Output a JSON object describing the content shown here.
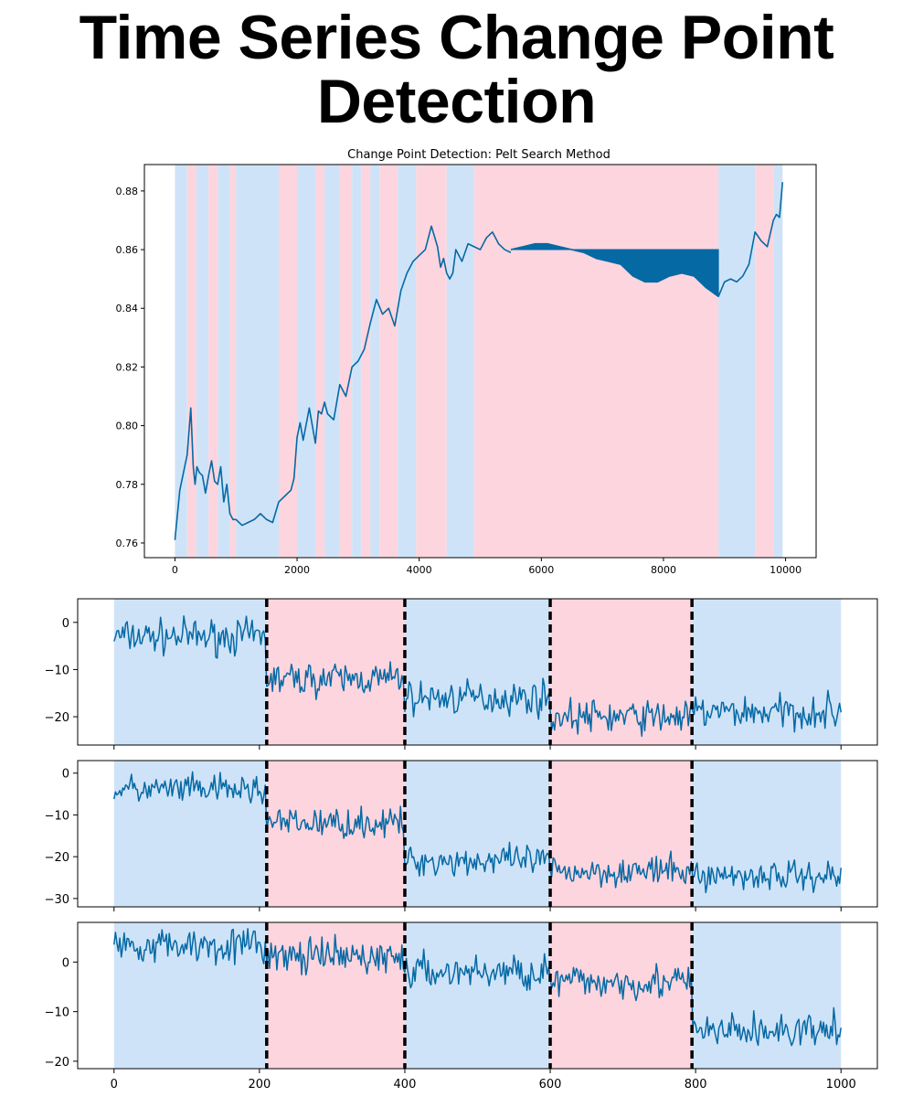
{
  "page": {
    "title": "Time Series Change Point Detection"
  },
  "colors": {
    "band_a": "#cfe3f8",
    "band_b": "#fdd5de",
    "line": "#0569a4",
    "axis": "#000000"
  },
  "chart_data": [
    {
      "type": "line",
      "title": "Change Point Detection: Pelt Search Method",
      "xlabel": "",
      "ylabel": "",
      "xlim": [
        -500,
        10500
      ],
      "ylim": [
        0.755,
        0.889
      ],
      "xticks": [
        0,
        2000,
        4000,
        6000,
        8000,
        10000
      ],
      "yticks": [
        0.76,
        0.78,
        0.8,
        0.82,
        0.84,
        0.86,
        0.88
      ],
      "ytick_labels": [
        "0.76",
        "0.78",
        "0.80",
        "0.82",
        "0.84",
        "0.86",
        "0.88"
      ],
      "grid": false,
      "segment_colors": [
        "band_a",
        "band_b"
      ],
      "breakpoints": [
        0,
        200,
        350,
        550,
        700,
        900,
        1000,
        1700,
        2000,
        2300,
        2450,
        2700,
        2900,
        3050,
        3200,
        3350,
        3650,
        3950,
        4450,
        4900,
        8900,
        9500,
        9800,
        9950
      ],
      "series": [
        {
          "x": [
            0,
            80,
            140,
            200,
            260,
            300,
            330,
            360,
            400,
            450,
            500,
            560,
            600,
            650,
            700,
            750,
            800,
            850,
            900,
            950,
            1000,
            1100,
            1200,
            1300,
            1400,
            1500,
            1600,
            1700,
            1800,
            1900,
            1950,
            2000,
            2050,
            2100,
            2200,
            2300,
            2350,
            2400,
            2450,
            2500,
            2600,
            2700,
            2800,
            2900,
            3000,
            3100,
            3200,
            3300,
            3400,
            3500,
            3600,
            3700,
            3800,
            3900,
            4000,
            4100,
            4200,
            4300,
            4350,
            4400,
            4450,
            4500,
            4550,
            4600,
            4700,
            4800,
            4900,
            5000,
            5100,
            5200,
            5300,
            5400,
            5500
          ],
          "values": [
            0.761,
            0.778,
            0.784,
            0.79,
            0.806,
            0.786,
            0.78,
            0.786,
            0.784,
            0.783,
            0.777,
            0.784,
            0.788,
            0.781,
            0.78,
            0.786,
            0.774,
            0.78,
            0.77,
            0.768,
            0.768,
            0.766,
            0.767,
            0.768,
            0.77,
            0.768,
            0.767,
            0.774,
            0.776,
            0.778,
            0.782,
            0.796,
            0.801,
            0.795,
            0.806,
            0.794,
            0.805,
            0.804,
            0.808,
            0.804,
            0.802,
            0.814,
            0.81,
            0.82,
            0.822,
            0.826,
            0.835,
            0.843,
            0.838,
            0.84,
            0.834,
            0.846,
            0.852,
            0.856,
            0.858,
            0.86,
            0.868,
            0.861,
            0.854,
            0.857,
            0.852,
            0.85,
            0.852,
            0.86,
            0.856,
            0.862,
            0.861,
            0.86,
            0.864,
            0.866,
            0.862,
            0.86,
            0.859
          ]
        },
        {
          "x": [
            5500,
            5700,
            5900,
            6100,
            6300,
            6500,
            6700,
            6900,
            7100,
            7300,
            7500,
            7700,
            7900,
            8100,
            8300,
            8500,
            8700,
            8900
          ],
          "values": [
            0.86,
            0.861,
            0.862,
            0.862,
            0.861,
            0.86,
            0.859,
            0.857,
            0.856,
            0.855,
            0.851,
            0.849,
            0.849,
            0.851,
            0.852,
            0.851,
            0.847,
            0.844
          ]
        },
        {
          "x": [
            8900,
            9000,
            9100,
            9200,
            9300,
            9400,
            9500,
            9600,
            9700,
            9800,
            9850,
            9900,
            9950
          ],
          "values": [
            0.844,
            0.849,
            0.85,
            0.849,
            0.851,
            0.855,
            0.866,
            0.863,
            0.861,
            0.87,
            0.872,
            0.871,
            0.883
          ]
        }
      ]
    },
    {
      "type": "line",
      "xlim": [
        -50,
        1050
      ],
      "ylim": [
        -26,
        5
      ],
      "yticks": [
        0,
        -10,
        -20
      ],
      "ytick_labels": [
        "0",
        "−10",
        "−20"
      ],
      "breakpoints": [
        0,
        210,
        400,
        600,
        795,
        1000
      ],
      "dashed_lines": [
        210,
        400,
        600,
        795
      ],
      "segment_means": [
        -3,
        -12,
        -16,
        -20,
        -19
      ],
      "noise_amplitude": 2.2,
      "grid": false
    },
    {
      "type": "line",
      "xlim": [
        -50,
        1050
      ],
      "ylim": [
        -32,
        3
      ],
      "yticks": [
        0,
        -10,
        -20,
        -30
      ],
      "ytick_labels": [
        "0",
        "−10",
        "−20",
        "−30"
      ],
      "breakpoints": [
        0,
        210,
        400,
        600,
        795,
        1000
      ],
      "dashed_lines": [
        210,
        400,
        600,
        795
      ],
      "segment_means": [
        -4,
        -12,
        -21,
        -23.5,
        -24.5
      ],
      "noise_amplitude": 2.2,
      "grid": false
    },
    {
      "type": "line",
      "xlim": [
        -50,
        1050
      ],
      "ylim": [
        -21.5,
        8
      ],
      "xticks": [
        0,
        200,
        400,
        600,
        800,
        1000
      ],
      "yticks": [
        0,
        -10,
        -20
      ],
      "ytick_labels": [
        "0",
        "−10",
        "−20"
      ],
      "breakpoints": [
        0,
        210,
        400,
        600,
        795,
        1000
      ],
      "dashed_lines": [
        210,
        400,
        600,
        795
      ],
      "segment_means": [
        3.5,
        1,
        -2,
        -4,
        -14
      ],
      "noise_amplitude": 2.2,
      "grid": false
    }
  ]
}
